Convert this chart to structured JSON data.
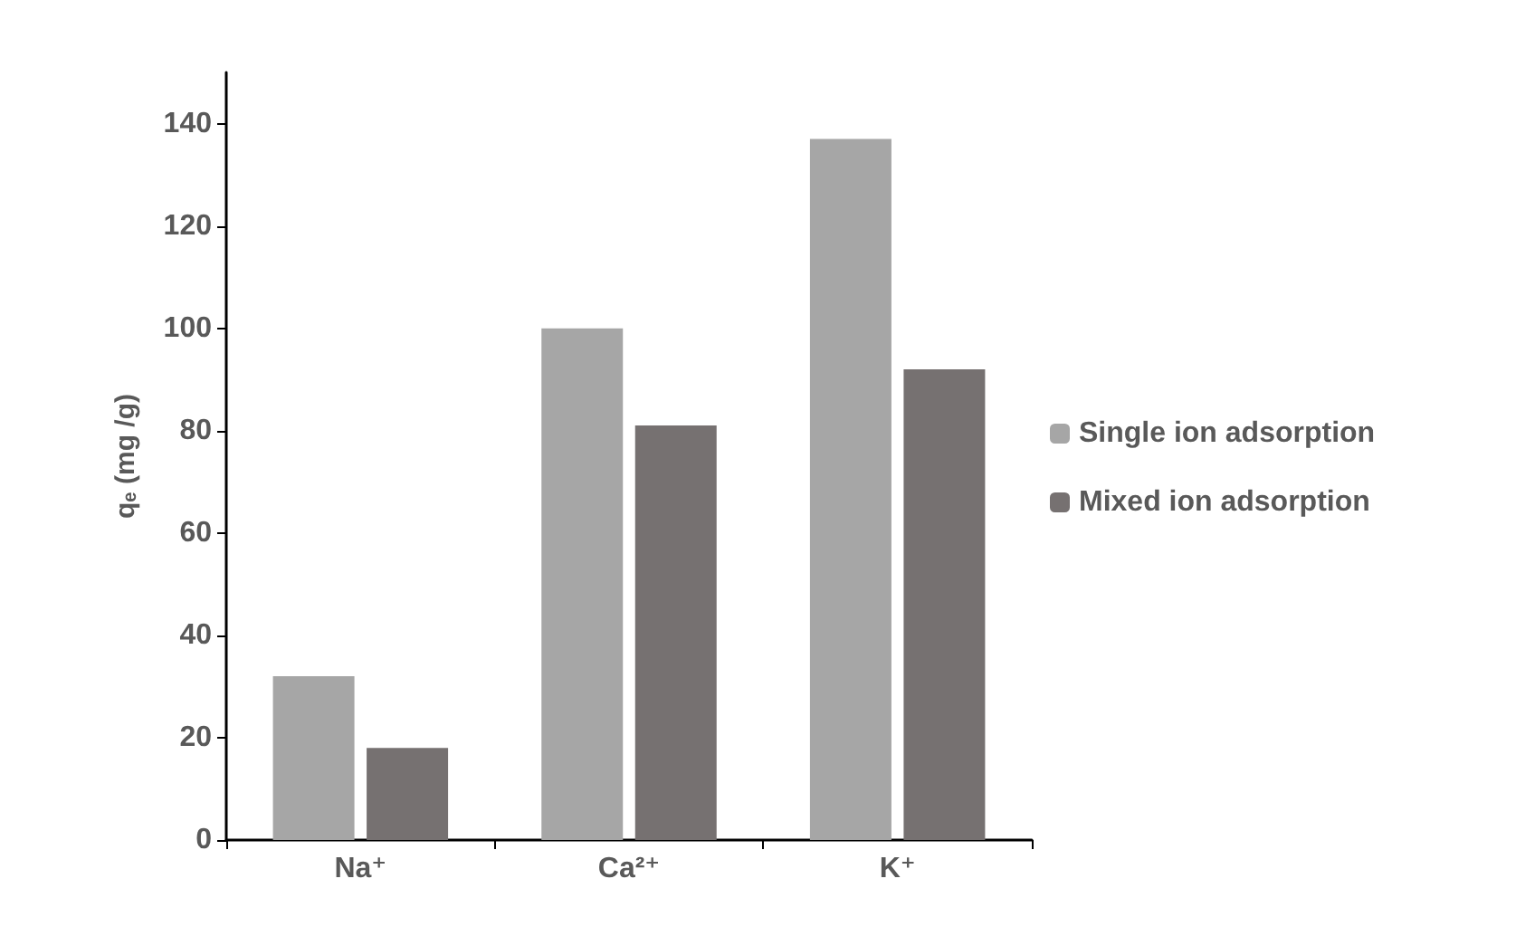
{
  "chart_data": {
    "type": "bar",
    "ylabel": "qₑ (mg /g)",
    "categories": [
      "Na⁺",
      "Ca²⁺",
      "K⁺"
    ],
    "series": [
      {
        "name": "Single ion adsorption",
        "color": "#a6a6a6",
        "values": [
          32,
          100,
          137
        ]
      },
      {
        "name": "Mixed ion adsorption",
        "color": "#767171",
        "values": [
          18,
          81,
          92
        ]
      }
    ],
    "ylim": [
      0,
      150
    ],
    "yticks": [
      0,
      20,
      40,
      60,
      80,
      100,
      120,
      140
    ],
    "grid": false,
    "legend": "right"
  }
}
